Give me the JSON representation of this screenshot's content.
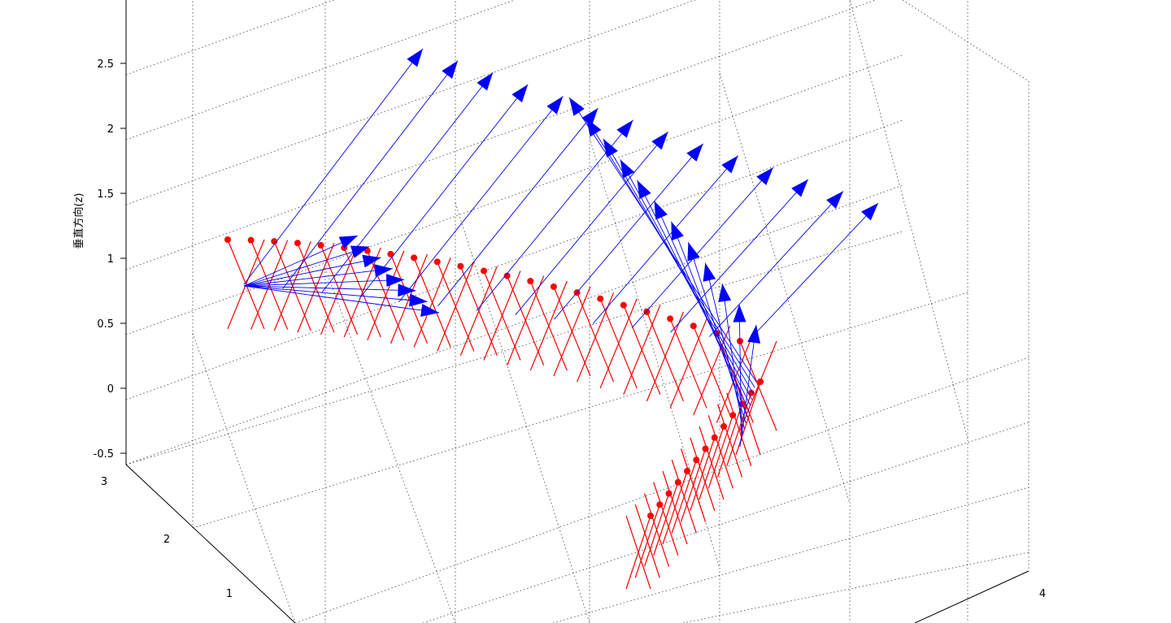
{
  "chart_data": {
    "type": "quiver3",
    "title": "",
    "xlabel": "",
    "ylabel": "",
    "zlabel": "垂直方向(z)",
    "zlim": [
      -0.5,
      3
    ],
    "zticks": [
      "-0.5",
      "0",
      "0.5",
      "1",
      "1.5",
      "2",
      "2.5"
    ],
    "yticks": [
      "1",
      "2",
      "3"
    ],
    "xticks": [
      "4"
    ],
    "grid": true,
    "colors": {
      "leg_lines": "#ff0000",
      "foot_markers": "#ff0000",
      "arrows": "#0000ff"
    },
    "series": [
      {
        "name": "",
        "kind": "leg-segments",
        "color": "#ff0000",
        "marker": "filled-circle"
      },
      {
        "name": "",
        "kind": "direction-arrows",
        "color": "#0000ff"
      }
    ]
  }
}
